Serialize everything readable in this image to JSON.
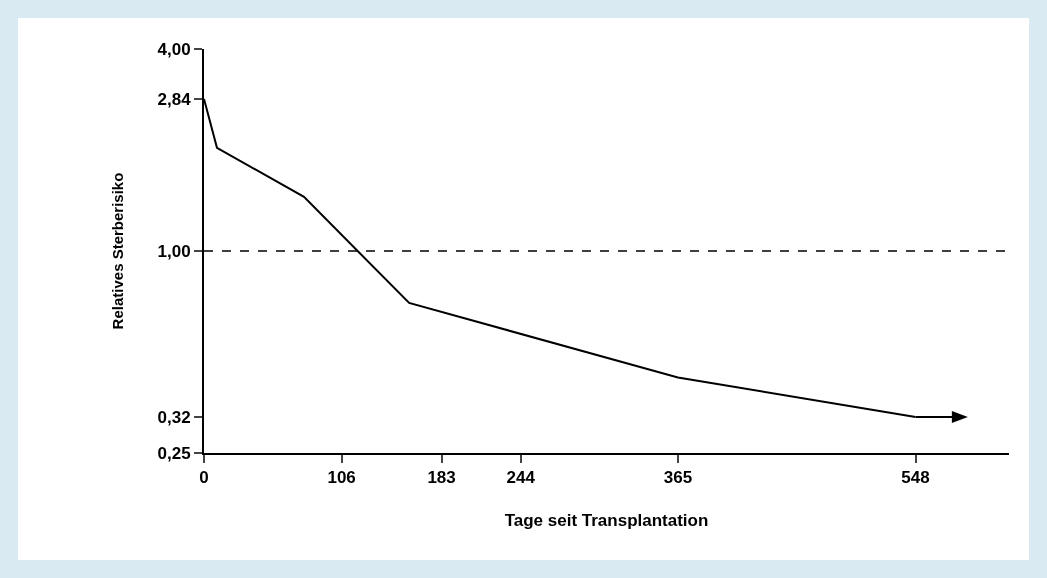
{
  "chart_data": {
    "type": "line",
    "xlabel": "Tage seit Transplantation",
    "ylabel": "Relatives Sterberisiko",
    "x": [
      0,
      10,
      77,
      158,
      365,
      548
    ],
    "series": [
      {
        "color": "#000000",
        "values": [
          2.84,
          2.03,
          1.45,
          0.7,
          0.42,
          0.32
        ]
      }
    ],
    "xlim": [
      0,
      620
    ],
    "xticks": [
      0,
      106,
      183,
      244,
      365,
      548
    ],
    "ylim": [
      0.25,
      4.0
    ],
    "yticks": [
      {
        "value": 0.25,
        "label": "0,25"
      },
      {
        "value": 0.32,
        "label": "0,32"
      },
      {
        "value": 1.0,
        "label": "1,00"
      },
      {
        "value": 2.84,
        "label": "2,84"
      },
      {
        "value": 4.0,
        "label": "4,00"
      }
    ],
    "log": "y",
    "ref_lines": [
      {
        "axis": "y",
        "value": 1.0,
        "color": "#000000",
        "line_style": "dashed"
      }
    ],
    "grid": false,
    "marker": "none",
    "line_style": "solid"
  }
}
